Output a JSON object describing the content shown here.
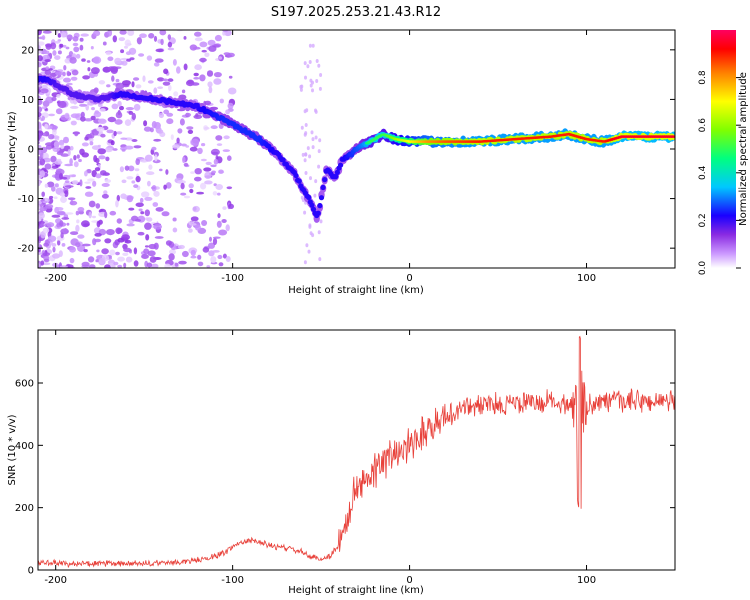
{
  "title": "S197.2025.253.21.43.R12",
  "chart_data": [
    {
      "type": "heatmap",
      "xlabel": "Height of straight line (km)",
      "ylabel": "Frequency (Hz)",
      "xlim": [
        -210,
        150
      ],
      "ylim": [
        -24,
        24
      ],
      "x_ticks": [
        -200,
        -100,
        0,
        100
      ],
      "y_ticks": [
        -20,
        -10,
        0,
        10,
        20
      ],
      "colorbar": {
        "label": "Normalized spectral amplitude",
        "range": [
          0,
          1
        ],
        "ticks": [
          0.0,
          0.2,
          0.4,
          0.6,
          0.8
        ],
        "tick_labels": [
          "0.0",
          "0.2",
          "0.4",
          "0.6",
          "0.8"
        ]
      },
      "ridge": {
        "x": [
          -205,
          -190,
          -175,
          -165,
          -150,
          -135,
          -120,
          -105,
          -95,
          -85,
          -75,
          -65,
          -57,
          -52,
          -47,
          -42,
          -38,
          -33,
          -28,
          -22,
          -15,
          -8,
          0,
          10,
          20,
          40,
          60,
          80,
          90,
          100,
          110,
          120,
          135,
          150
        ],
        "freq": [
          14,
          11,
          10,
          11,
          10.5,
          9.5,
          8.5,
          6,
          4,
          2,
          -1,
          -5,
          -10,
          -14,
          -4,
          -6,
          -2,
          -1,
          0.5,
          1.5,
          3,
          2,
          1.5,
          1.5,
          1.5,
          1.5,
          2,
          2.5,
          3,
          2,
          1.5,
          2.5,
          2.5,
          2.5
        ],
        "amp": [
          0.3,
          0.2,
          0.2,
          0.3,
          0.3,
          0.3,
          0.3,
          0.35,
          0.35,
          0.35,
          0.3,
          0.3,
          0.3,
          0.3,
          0.3,
          0.3,
          0.3,
          0.35,
          0.4,
          0.5,
          0.5,
          0.6,
          0.7,
          0.8,
          0.85,
          0.9,
          0.9,
          0.9,
          0.9,
          0.9,
          0.9,
          0.95,
          0.95,
          0.95
        ]
      }
    },
    {
      "type": "line",
      "xlabel": "Height of straight line (km)",
      "ylabel": "SNR (10 * v/v)",
      "xlim": [
        -210,
        150
      ],
      "ylim": [
        0,
        770
      ],
      "x_ticks": [
        -200,
        -100,
        0,
        100
      ],
      "y_ticks": [
        0,
        200,
        400,
        600
      ],
      "color": "#e8413a",
      "series": [
        {
          "name": "SNR",
          "x": [
            -210,
            -190,
            -170,
            -150,
            -130,
            -115,
            -105,
            -100,
            -95,
            -90,
            -85,
            -80,
            -75,
            -70,
            -65,
            -60,
            -55,
            -50,
            -45,
            -40,
            -35,
            -30,
            -25,
            -20,
            -15,
            -10,
            -5,
            0,
            5,
            10,
            15,
            20,
            30,
            40,
            50,
            60,
            70,
            80,
            90,
            100,
            110,
            120,
            130,
            140,
            150
          ],
          "values": [
            25,
            20,
            20,
            20,
            25,
            35,
            55,
            75,
            90,
            95,
            90,
            80,
            75,
            70,
            65,
            55,
            40,
            35,
            45,
            80,
            170,
            260,
            300,
            320,
            340,
            370,
            390,
            410,
            430,
            455,
            470,
            490,
            520,
            530,
            530,
            535,
            535,
            540,
            535,
            535,
            540,
            540,
            540,
            540,
            540
          ]
        }
      ],
      "annotations": [
        {
          "x": 96,
          "max": 770,
          "min": 190
        }
      ]
    }
  ]
}
